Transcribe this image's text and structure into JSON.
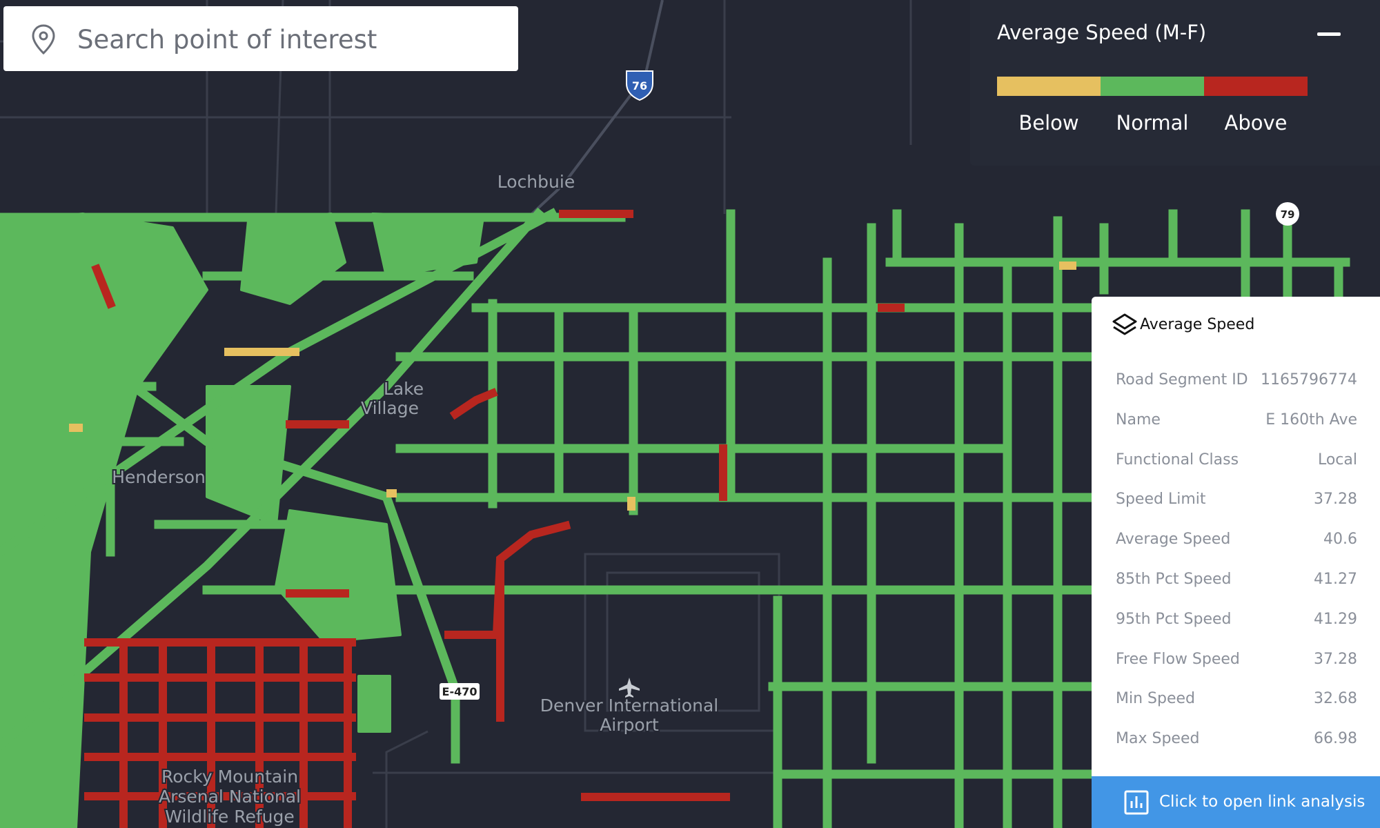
{
  "search": {
    "placeholder": "Search point of interest"
  },
  "legend": {
    "title": "Average Speed (M-F)",
    "items": [
      {
        "label": "Below",
        "color": "#e6c060"
      },
      {
        "label": "Normal",
        "color": "#5cb85c"
      },
      {
        "label": "Above",
        "color": "#b8261f"
      }
    ]
  },
  "map_labels": {
    "town": "Lochbuie",
    "henderson": "Henderson",
    "lake": "Lake",
    "village": "Village",
    "airport": [
      "Denver International",
      "Airport"
    ],
    "refuge": [
      "Rocky Mountain",
      "Arsenal National",
      "Wildlife Refuge"
    ],
    "shields": [
      "76",
      "79",
      "E-470"
    ]
  },
  "info_panel": {
    "title": "Average Speed",
    "rows": [
      [
        "Road Segment ID",
        "1165796774"
      ],
      [
        "Name",
        "E 160th Ave"
      ],
      [
        "Functional Class",
        "Local"
      ],
      [
        "Speed Limit",
        "37.28"
      ],
      [
        "Average Speed",
        "40.6"
      ],
      [
        "85th Pct Speed",
        "41.27"
      ],
      [
        "95th Pct Speed",
        "41.29"
      ],
      [
        "Free Flow Speed",
        "37.28"
      ],
      [
        "Min Speed",
        "32.68"
      ],
      [
        "Max Speed",
        "66.98"
      ]
    ],
    "button": "Click to open link analysis"
  }
}
